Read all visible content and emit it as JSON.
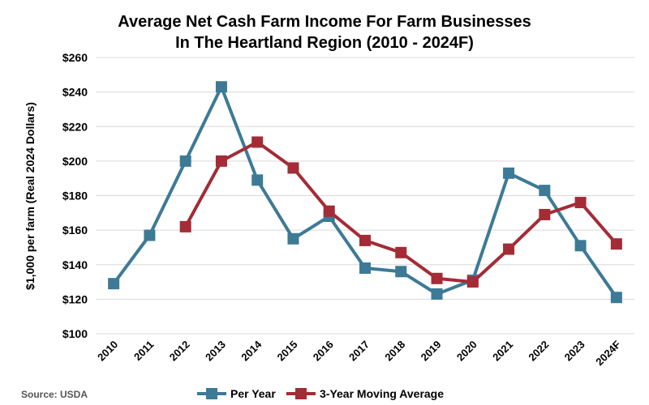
{
  "chart_data": {
    "type": "line",
    "title": [
      "Average Net Cash Farm Income For Farm Businesses",
      "In The Heartland Region (2010 - 2024F)"
    ],
    "xlabel": "",
    "ylabel": "$1,000 per farm (Real 2024 Dollars)",
    "categories": [
      "2010",
      "2011",
      "2012",
      "2013",
      "2014",
      "2015",
      "2016",
      "2017",
      "2018",
      "2019",
      "2020",
      "2021",
      "2022",
      "2023",
      "2024F"
    ],
    "ylim": [
      100,
      260
    ],
    "yticks": [
      100,
      120,
      140,
      160,
      180,
      200,
      220,
      240,
      260
    ],
    "ytick_labels": [
      "$100",
      "$120",
      "$140",
      "$160",
      "$180",
      "$200",
      "$220",
      "$240",
      "$260"
    ],
    "grid": true,
    "series": [
      {
        "name": "Per Year",
        "color": "#3d7a96",
        "marker": "square",
        "values": [
          129,
          157,
          200,
          243,
          189,
          155,
          168,
          138,
          136,
          123,
          131,
          193,
          183,
          151,
          121
        ]
      },
      {
        "name": "3-Year Moving Average",
        "color": "#a32c36",
        "marker": "square",
        "values": [
          null,
          null,
          162,
          200,
          211,
          196,
          171,
          154,
          147,
          132,
          130,
          149,
          169,
          176,
          152
        ]
      }
    ],
    "legend": "bottom-center",
    "source": "Source: USDA"
  }
}
